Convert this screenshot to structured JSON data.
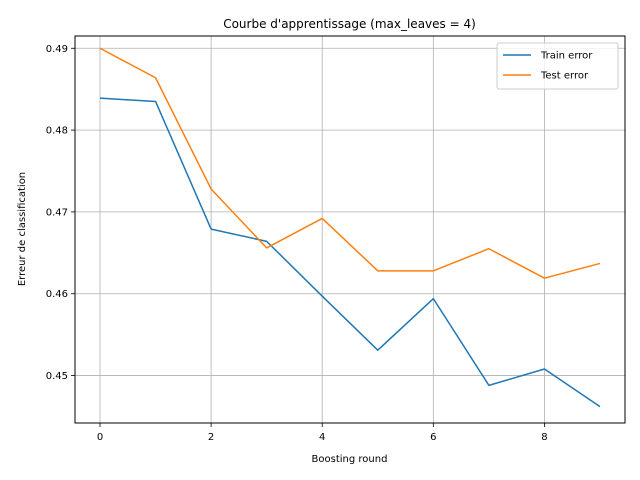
{
  "chart_data": {
    "type": "line",
    "title": "Courbe d'apprentissage (max_leaves = 4)",
    "xlabel": "Boosting round",
    "ylabel": "Erreur de classification",
    "x": [
      0,
      1,
      2,
      3,
      4,
      5,
      6,
      7,
      8,
      9
    ],
    "xlim": [
      -0.45,
      9.45
    ],
    "ylim": [
      0.4442,
      0.4915
    ],
    "xticks": [
      0,
      2,
      4,
      6,
      8
    ],
    "xtick_labels": [
      "0",
      "2",
      "4",
      "6",
      "8"
    ],
    "yticks": [
      0.45,
      0.46,
      0.47,
      0.48,
      0.49
    ],
    "ytick_labels": [
      "0.45",
      "0.46",
      "0.47",
      "0.48",
      "0.49"
    ],
    "grid": true,
    "legend_position": "top-right",
    "series": [
      {
        "name": "Train error",
        "color": "#1f77b4",
        "values": [
          0.4839,
          0.4835,
          0.4679,
          0.4664,
          0.4597,
          0.4531,
          0.4594,
          0.4488,
          0.4508,
          0.4462
        ]
      },
      {
        "name": "Test error",
        "color": "#ff7f0e",
        "values": [
          0.49,
          0.4864,
          0.4728,
          0.4656,
          0.4692,
          0.4628,
          0.4628,
          0.4655,
          0.4619,
          0.4637
        ]
      }
    ]
  }
}
